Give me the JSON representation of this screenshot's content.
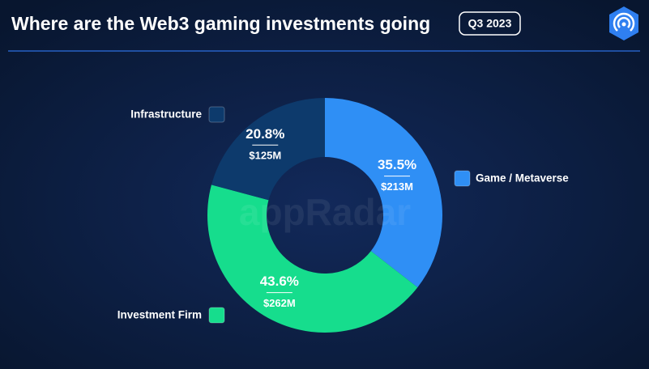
{
  "chart_data": {
    "type": "pie",
    "donut": true,
    "title": "Where are the Web3 gaming investments going",
    "badge": "Q3 2023",
    "watermark": "appRadar",
    "categories": [
      "Game / Metaverse",
      "Investment Firm",
      "Infrastructure"
    ],
    "values": [
      35.5,
      43.6,
      20.8
    ],
    "value_labels": [
      "35.5%",
      "43.6%",
      "20.8%"
    ],
    "amount_labels": [
      "$213M",
      "$262M",
      "$125M"
    ],
    "colors": [
      "#2f8ff5",
      "#16dd8d",
      "#0d3a6c"
    ]
  }
}
